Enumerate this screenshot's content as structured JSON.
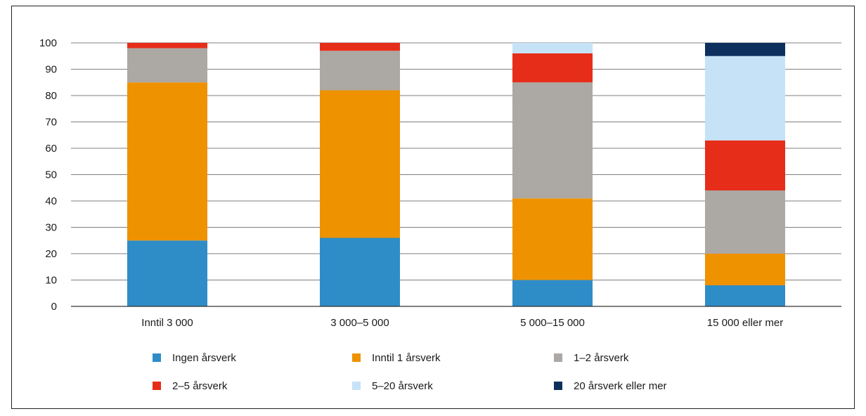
{
  "chart_data": {
    "type": "bar",
    "stacked": true,
    "categories": [
      "Inntil 3 000",
      "3 000–5 000",
      "5 000–15 000",
      "15 000 eller mer"
    ],
    "series": [
      {
        "name": "Ingen årsverk",
        "color": "#2e8dc7",
        "values": [
          25,
          26,
          10,
          8
        ]
      },
      {
        "name": "Inntil 1 årsverk",
        "color": "#ee9200",
        "values": [
          60,
          56,
          31,
          12
        ]
      },
      {
        "name": "1–2 årsverk",
        "color": "#aca8a3",
        "values": [
          13,
          15,
          44,
          24
        ]
      },
      {
        "name": "2–5 årsverk",
        "color": "#e62d19",
        "values": [
          2,
          3,
          11,
          19
        ]
      },
      {
        "name": "5–20 årsverk",
        "color": "#c6e2f7",
        "values": [
          0,
          0,
          4,
          32
        ]
      },
      {
        "name": "20 årsverk eller mer",
        "color": "#0d2f5e",
        "values": [
          0,
          0,
          0,
          5
        ]
      }
    ],
    "ylim": [
      0,
      100
    ],
    "yticks": [
      0,
      10,
      20,
      30,
      40,
      50,
      60,
      70,
      80,
      90,
      100
    ],
    "grid": true,
    "legend_position": "bottom",
    "title": "",
    "xlabel": "",
    "ylabel": ""
  }
}
